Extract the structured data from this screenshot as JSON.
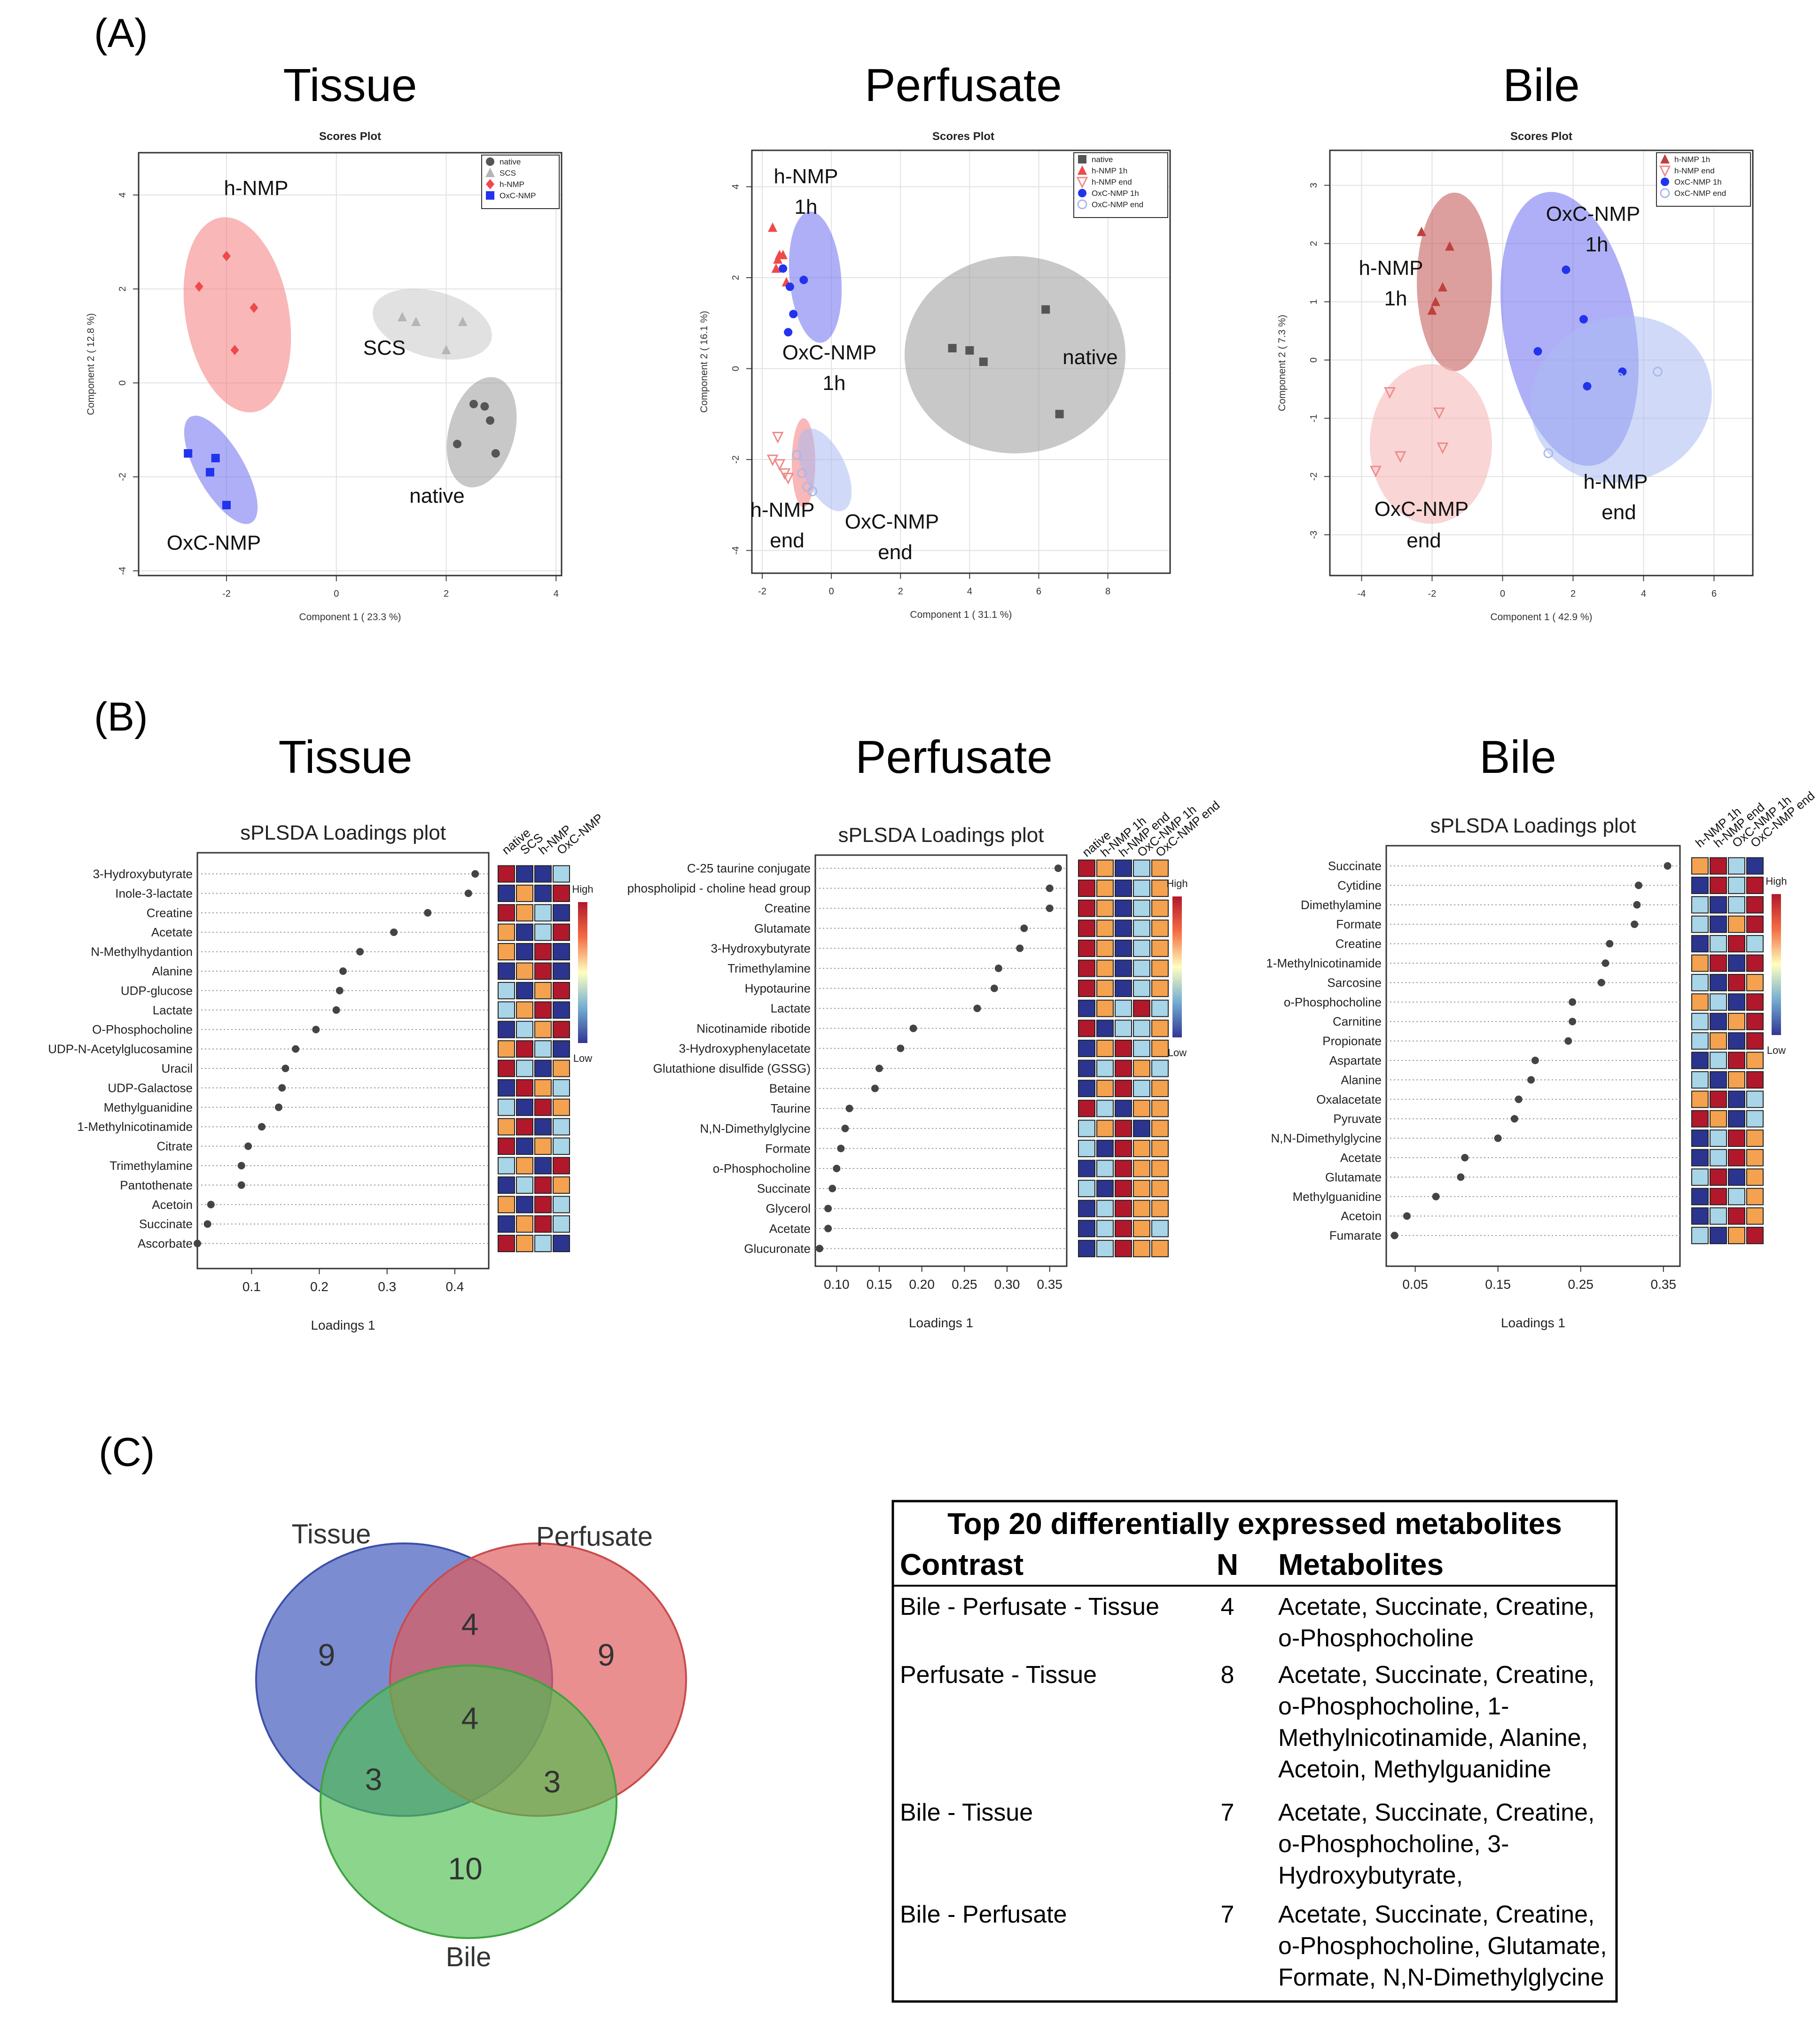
{
  "panels": {
    "A": "(A)",
    "B": "(B)",
    "C": "(C)"
  },
  "colors": {
    "red": "#f08080",
    "gray": "#9a9a9a",
    "blue": "#6666ee",
    "darkred": "#c0504d",
    "venn_tissue": "#4a5fbf",
    "venn_perfusate": "#e05a5a",
    "venn_bile": "#4fbf4f"
  },
  "chart_data": [
    {
      "type": "scatter",
      "panel": "A",
      "title": "Tissue",
      "subtitle": "Scores Plot",
      "xlabel": "Component 1 ( 23.3 %)",
      "ylabel": "Component 2 ( 12.8 %)",
      "xlim": [
        -3.6,
        4.1
      ],
      "ylim": [
        -4.1,
        4.9
      ],
      "xticks": [
        -2,
        0,
        2,
        4
      ],
      "yticks": [
        -4,
        -2,
        0,
        2,
        4
      ],
      "legend": [
        "native",
        "SCS",
        "h-NMP",
        "OxC-NMP"
      ],
      "legend_position": "top-right",
      "series": [
        {
          "name": "native",
          "color": "gray",
          "marker": "circle",
          "x": [
            2.7,
            2.2,
            2.9,
            2.8,
            2.5
          ],
          "y": [
            -0.5,
            -1.3,
            -1.5,
            -0.8,
            -0.45
          ]
        },
        {
          "name": "SCS",
          "color": "lightgray",
          "marker": "triangle",
          "x": [
            1.2,
            1.45,
            2.3,
            2.0
          ],
          "y": [
            1.4,
            1.3,
            1.3,
            0.7
          ]
        },
        {
          "name": "h-NMP",
          "color": "red",
          "marker": "diamond",
          "x": [
            -2.5,
            -2.0,
            -1.5,
            -1.85
          ],
          "y": [
            2.05,
            2.7,
            1.6,
            0.7
          ]
        },
        {
          "name": "OxC-NMP",
          "color": "blue",
          "marker": "square",
          "x": [
            -2.7,
            -2.3,
            -2.2,
            -2.0
          ],
          "y": [
            -1.5,
            -1.9,
            -1.6,
            -2.6
          ]
        }
      ],
      "ellipse_labels": [
        "h-NMP",
        "SCS",
        "native",
        "OxC-NMP"
      ]
    },
    {
      "type": "scatter",
      "panel": "A",
      "title": "Perfusate",
      "subtitle": "Scores Plot",
      "xlabel": "Component 1 ( 31.1 %)",
      "ylabel": "Component 2 ( 16.1 %)",
      "xlim": [
        -2.3,
        9.8
      ],
      "ylim": [
        -4.5,
        4.8
      ],
      "xticks": [
        -2,
        0,
        2,
        4,
        6,
        8
      ],
      "yticks": [
        -4,
        -2,
        0,
        2,
        4
      ],
      "legend": [
        "native",
        "h-NMP 1h",
        "h-NMP end",
        "OxC-NMP 1h",
        "OxC-NMP end"
      ],
      "legend_position": "top-right",
      "series": [
        {
          "name": "native",
          "color": "gray",
          "marker": "square",
          "x": [
            3.5,
            4.0,
            4.4,
            6.2,
            6.6
          ],
          "y": [
            0.45,
            0.4,
            0.15,
            1.3,
            -1.0
          ]
        },
        {
          "name": "h-NMP 1h",
          "color": "red",
          "marker": "triangle",
          "x": [
            -1.7,
            -1.5,
            -1.4,
            -1.3,
            -1.6,
            -1.55
          ],
          "y": [
            3.1,
            2.5,
            2.5,
            1.9,
            2.2,
            2.4
          ]
        },
        {
          "name": "h-NMP end",
          "color": "lightred",
          "marker": "triangle-down",
          "x": [
            -1.7,
            -1.5,
            -1.35,
            -1.25,
            -1.55
          ],
          "y": [
            -2.0,
            -2.1,
            -2.3,
            -2.4,
            -1.5
          ]
        },
        {
          "name": "OxC-NMP 1h",
          "color": "blue",
          "marker": "circle",
          "x": [
            -1.2,
            -1.1,
            -0.8,
            -1.25,
            -1.4
          ],
          "y": [
            1.8,
            1.2,
            1.95,
            0.8,
            2.2
          ]
        },
        {
          "name": "OxC-NMP end",
          "color": "lightblue",
          "marker": "circle-open",
          "x": [
            -0.7,
            -0.55,
            -1.0,
            -0.85
          ],
          "y": [
            -2.6,
            -2.7,
            -1.9,
            -2.3
          ]
        }
      ],
      "ellipse_labels": [
        "h-NMP 1h",
        "OxC-NMP 1h",
        "native",
        "h-NMP end",
        "OxC-NMP end"
      ]
    },
    {
      "type": "scatter",
      "panel": "A",
      "title": "Bile",
      "subtitle": "Scores Plot",
      "xlabel": "Component 1 ( 42.9 %)",
      "ylabel": "Component 2 ( 7.3 %)",
      "xlim": [
        -4.9,
        7.1
      ],
      "ylim": [
        -3.7,
        3.6
      ],
      "xticks": [
        -4,
        -2,
        0,
        2,
        4,
        6
      ],
      "yticks": [
        -3,
        -2,
        -1,
        0,
        1,
        2,
        3
      ],
      "legend": [
        "h-NMP 1h",
        "h-NMP end",
        "OxC-NMP 1h",
        "OxC-NMP end"
      ],
      "legend_position": "top-right",
      "series": [
        {
          "name": "h-NMP 1h",
          "color": "darkred",
          "marker": "triangle",
          "x": [
            -2.3,
            -1.5,
            -1.7,
            -1.9,
            -2.0
          ],
          "y": [
            2.2,
            1.95,
            1.25,
            1.0,
            0.85
          ]
        },
        {
          "name": "h-NMP end",
          "color": "lightred",
          "marker": "triangle-down",
          "x": [
            -3.2,
            -1.8,
            -1.7,
            -2.9,
            -3.6
          ],
          "y": [
            -0.55,
            -0.9,
            -1.5,
            -1.65,
            -1.9
          ]
        },
        {
          "name": "OxC-NMP 1h",
          "color": "blue",
          "marker": "circle",
          "x": [
            1.8,
            2.3,
            1.0,
            2.4,
            3.4
          ],
          "y": [
            1.55,
            0.7,
            0.15,
            -0.45,
            -0.2
          ]
        },
        {
          "name": "OxC-NMP end",
          "color": "lightblue",
          "marker": "circle-open",
          "x": [
            1.3,
            1.7,
            3.3,
            4.4,
            1.2
          ],
          "y": [
            -1.6,
            -0.15,
            -0.3,
            -0.2,
            -0.1
          ]
        }
      ],
      "ellipse_labels": [
        "h-NMP 1h",
        "OxC-NMP 1h",
        "h-NMP end",
        "OxC-NMP end"
      ]
    },
    {
      "type": "dot",
      "panel": "B",
      "title": "Tissue",
      "subtitle": "sPLSDA Loadings plot",
      "xlabel": "Loadings 1",
      "xlim": [
        0.02,
        0.45
      ],
      "xticks": [
        0.1,
        0.2,
        0.3,
        0.4
      ],
      "legend_high": "High",
      "legend_low": "Low",
      "groups": [
        "native",
        "SCS",
        "h-NMP",
        "OxC-NMP"
      ],
      "features": [
        "3-Hydroxybutyrate",
        "Inole-3-lactate",
        "Creatine",
        "Acetate",
        "N-Methylhydantion",
        "Alanine",
        "UDP-glucose",
        "Lactate",
        "O-Phosphocholine",
        "UDP-N-Acetylglucosamine",
        "Uracil",
        "UDP-Galactose",
        "Methylguanidine",
        "1-Methylnicotinamide",
        "Citrate",
        "Trimethylamine",
        "Pantothenate",
        "Acetoin",
        "Succinate",
        "Ascorbate"
      ],
      "values": [
        0.43,
        0.42,
        0.36,
        0.31,
        0.26,
        0.235,
        0.23,
        0.225,
        0.195,
        0.165,
        0.15,
        0.145,
        0.14,
        0.115,
        0.095,
        0.085,
        0.085,
        0.04,
        0.035,
        0.02
      ],
      "heatmap": [
        [
          4,
          1,
          1,
          2
        ],
        [
          1,
          3,
          1,
          4
        ],
        [
          4,
          3,
          2,
          1
        ],
        [
          3,
          1,
          2,
          4
        ],
        [
          3,
          1,
          4,
          1
        ],
        [
          1,
          3,
          4,
          1
        ],
        [
          2,
          1,
          3,
          4
        ],
        [
          2,
          3,
          4,
          1
        ],
        [
          1,
          2,
          3,
          4
        ],
        [
          3,
          4,
          2,
          1
        ],
        [
          4,
          2,
          1,
          3
        ],
        [
          1,
          4,
          3,
          2
        ],
        [
          2,
          1,
          4,
          3
        ],
        [
          3,
          4,
          1,
          2
        ],
        [
          4,
          1,
          3,
          2
        ],
        [
          2,
          3,
          1,
          4
        ],
        [
          1,
          2,
          4,
          3
        ],
        [
          3,
          1,
          4,
          2
        ],
        [
          1,
          3,
          4,
          2
        ],
        [
          4,
          3,
          2,
          1
        ]
      ]
    },
    {
      "type": "dot",
      "panel": "B",
      "title": "Perfusate",
      "subtitle": "sPLSDA Loadings plot",
      "xlabel": "Loadings 1",
      "xlim": [
        0.075,
        0.37
      ],
      "xticks": [
        0.1,
        0.15,
        0.2,
        0.25,
        0.3,
        0.35
      ],
      "legend_high": "High",
      "legend_low": "Low",
      "groups": [
        "native",
        "h-NMP 1h",
        "h-NMP end",
        "OxC-NMP 1h",
        "OxC-NMP end"
      ],
      "features": [
        "C-25 taurine conjugate",
        "phospholipid - choline head group",
        "Creatine",
        "Glutamate",
        "3-Hydroxybutyrate",
        "Trimethylamine",
        "Hypotaurine",
        "Lactate",
        "Nicotinamide ribotide",
        "3-Hydroxyphenylacetate",
        "Glutathione disulfide (GSSG)",
        "Betaine",
        "Taurine",
        "N,N-Dimethylglycine",
        "Formate",
        "o-Phosphocholine",
        "Succinate",
        "Glycerol",
        "Acetate",
        "Glucuronate"
      ],
      "values": [
        0.36,
        0.35,
        0.35,
        0.32,
        0.315,
        0.29,
        0.285,
        0.265,
        0.19,
        0.175,
        0.15,
        0.145,
        0.115,
        0.11,
        0.105,
        0.1,
        0.095,
        0.09,
        0.09,
        0.08
      ],
      "heatmap": [
        [
          4,
          3,
          1,
          2,
          3
        ],
        [
          4,
          3,
          1,
          2,
          3
        ],
        [
          4,
          3,
          1,
          2,
          3
        ],
        [
          4,
          3,
          1,
          2,
          3
        ],
        [
          4,
          3,
          1,
          2,
          3
        ],
        [
          4,
          3,
          1,
          2,
          3
        ],
        [
          4,
          3,
          1,
          2,
          3
        ],
        [
          1,
          3,
          2,
          4,
          2
        ],
        [
          4,
          1,
          2,
          2,
          3
        ],
        [
          1,
          3,
          4,
          2,
          3
        ],
        [
          1,
          2,
          4,
          3,
          2
        ],
        [
          1,
          3,
          4,
          2,
          3
        ],
        [
          4,
          2,
          1,
          3,
          3
        ],
        [
          2,
          3,
          4,
          1,
          3
        ],
        [
          2,
          1,
          4,
          3,
          3
        ],
        [
          1,
          2,
          4,
          3,
          3
        ],
        [
          2,
          1,
          4,
          3,
          3
        ],
        [
          1,
          2,
          4,
          3,
          3
        ],
        [
          1,
          2,
          4,
          3,
          2
        ],
        [
          1,
          2,
          4,
          3,
          3
        ]
      ]
    },
    {
      "type": "dot",
      "panel": "B",
      "title": "Bile",
      "subtitle": "sPLSDA Loadings plot",
      "xlabel": "Loadings 1",
      "xlim": [
        0.015,
        0.37
      ],
      "xticks": [
        0.05,
        0.15,
        0.25,
        0.35
      ],
      "legend_high": "High",
      "legend_low": "Low",
      "groups": [
        "h-NMP 1h",
        "h-NMP end",
        "OxC-NMP 1h",
        "OxC-NMP end"
      ],
      "features": [
        "Succinate",
        "Cytidine",
        "Dimethylamine",
        "Formate",
        "Creatine",
        "1-Methylnicotinamide",
        "Sarcosine",
        "o-Phosphocholine",
        "Carnitine",
        "Propionate",
        "Aspartate",
        "Alanine",
        "Oxalacetate",
        "Pyruvate",
        "N,N-Dimethylglycine",
        "Acetate",
        "Glutamate",
        "Methylguanidine",
        "Acetoin",
        "Fumarate"
      ],
      "values": [
        0.355,
        0.32,
        0.318,
        0.315,
        0.285,
        0.28,
        0.275,
        0.24,
        0.24,
        0.235,
        0.195,
        0.19,
        0.175,
        0.17,
        0.15,
        0.11,
        0.105,
        0.075,
        0.04,
        0.025
      ],
      "heatmap": [
        [
          3,
          4,
          2,
          1
        ],
        [
          1,
          4,
          2,
          4
        ],
        [
          2,
          1,
          2,
          4
        ],
        [
          2,
          1,
          3,
          4
        ],
        [
          1,
          2,
          4,
          2
        ],
        [
          3,
          4,
          1,
          4
        ],
        [
          2,
          1,
          4,
          3
        ],
        [
          3,
          2,
          1,
          4
        ],
        [
          2,
          1,
          3,
          4
        ],
        [
          2,
          3,
          1,
          4
        ],
        [
          1,
          2,
          4,
          3
        ],
        [
          2,
          1,
          3,
          4
        ],
        [
          3,
          4,
          1,
          2
        ],
        [
          4,
          3,
          1,
          2
        ],
        [
          1,
          2,
          4,
          3
        ],
        [
          1,
          2,
          4,
          3
        ],
        [
          2,
          4,
          1,
          3
        ],
        [
          1,
          4,
          2,
          3
        ],
        [
          1,
          2,
          4,
          3
        ],
        [
          2,
          1,
          3,
          4
        ]
      ]
    }
  ],
  "venn": {
    "labels": {
      "tissue": "Tissue",
      "perfusate": "Perfusate",
      "bile": "Bile"
    },
    "counts": {
      "tissue_only": "9",
      "perfusate_only": "9",
      "bile_only": "10",
      "tissue_perfusate": "4",
      "tissue_bile": "3",
      "perfusate_bile": "3",
      "all": "4"
    }
  },
  "table": {
    "title": "Top 20 differentially expressed metabolites",
    "headers": [
      "Contrast",
      "N",
      "Metabolites"
    ],
    "rows": [
      {
        "contrast": "Bile - Perfusate - Tissue",
        "n": "4",
        "lines": [
          "Acetate, Succinate, Creatine,",
          "o-Phosphocholine"
        ]
      },
      {
        "contrast": "Perfusate - Tissue",
        "n": "8",
        "lines": [
          "Acetate, Succinate, Creatine,",
          "o-Phosphocholine, 1-",
          "Methylnicotinamide, Alanine,",
          "Acetoin, Methylguanidine"
        ]
      },
      {
        "contrast": "Bile - Tissue",
        "n": "7",
        "lines": [
          "Acetate, Succinate, Creatine,",
          "o-Phosphocholine, 3-",
          "Hydroxybutyrate,"
        ]
      },
      {
        "contrast": "Bile - Perfusate",
        "n": "7",
        "lines": [
          "Acetate, Succinate, Creatine,",
          "o-Phosphocholine, Glutamate,",
          "Formate, N,N-Dimethylglycine"
        ]
      }
    ]
  }
}
